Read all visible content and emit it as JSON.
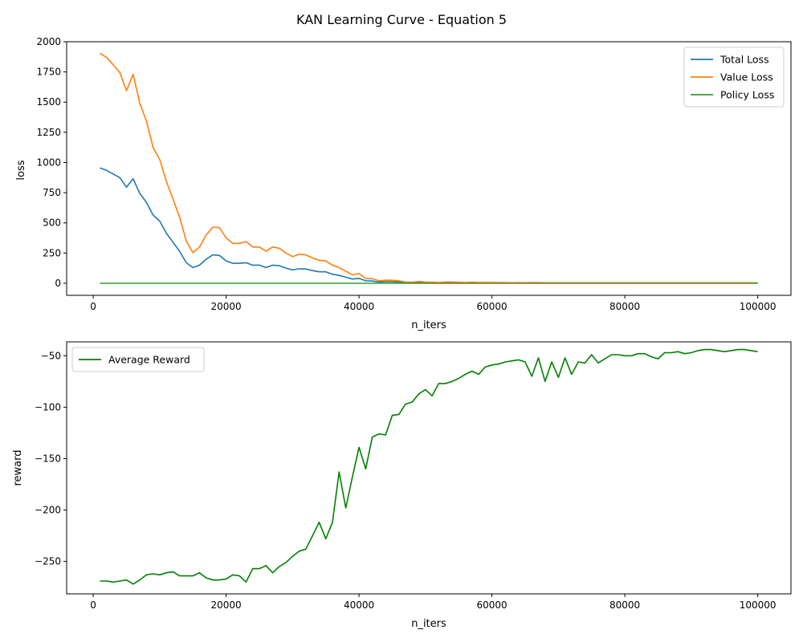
{
  "figure": {
    "suptitle": "KAN Learning Curve - Equation 5"
  },
  "chart_data": [
    {
      "type": "line",
      "xlabel": "n_iters",
      "ylabel": "loss",
      "xlim": [
        -4000,
        105000
      ],
      "ylim": [
        -100,
        2000
      ],
      "xticks": [
        0,
        20000,
        40000,
        60000,
        80000,
        100000
      ],
      "xtick_labels": [
        "0",
        "20000",
        "40000",
        "60000",
        "80000",
        "100000"
      ],
      "yticks": [
        0,
        250,
        500,
        750,
        1000,
        1250,
        1500,
        1750,
        2000
      ],
      "ytick_labels": [
        "0",
        "250",
        "500",
        "750",
        "1000",
        "1250",
        "1500",
        "1750",
        "2000"
      ],
      "grid": false,
      "legend_position": "top-right",
      "x": [
        1000,
        2000,
        3000,
        4000,
        5000,
        6000,
        7000,
        8000,
        9000,
        10000,
        11000,
        12000,
        13000,
        14000,
        15000,
        16000,
        17000,
        18000,
        19000,
        20000,
        21000,
        22000,
        23000,
        24000,
        25000,
        26000,
        27000,
        28000,
        29000,
        30000,
        31000,
        32000,
        33000,
        34000,
        35000,
        36000,
        37000,
        38000,
        39000,
        40000,
        41000,
        42000,
        43000,
        44000,
        45000,
        46000,
        47000,
        48000,
        49000,
        50000,
        51000,
        52000,
        53000,
        54000,
        55000,
        56000,
        57000,
        58000,
        59000,
        60000,
        61000,
        62000,
        63000,
        64000,
        65000,
        66000,
        67000,
        68000,
        69000,
        70000,
        71000,
        72000,
        73000,
        74000,
        75000,
        76000,
        77000,
        78000,
        79000,
        80000,
        81000,
        82000,
        83000,
        84000,
        85000,
        86000,
        87000,
        88000,
        89000,
        90000,
        91000,
        92000,
        93000,
        94000,
        95000,
        96000,
        97000,
        98000,
        99000,
        100000
      ],
      "series": [
        {
          "name": "Total Loss",
          "color": "#1f77b4",
          "values": [
            955,
            935,
            905,
            875,
            795,
            865,
            745,
            670,
            565,
            515,
            415,
            340,
            265,
            170,
            130,
            150,
            200,
            235,
            230,
            185,
            165,
            165,
            170,
            150,
            150,
            130,
            150,
            145,
            125,
            110,
            120,
            118,
            105,
            95,
            95,
            75,
            65,
            50,
            35,
            40,
            20,
            18,
            10,
            12,
            12,
            10,
            5,
            4,
            6,
            5,
            4,
            3,
            4,
            5,
            4,
            3,
            4,
            3,
            3,
            3,
            3,
            3,
            2,
            3,
            2,
            3,
            3,
            2,
            2,
            2,
            2,
            2,
            2,
            2,
            2,
            2,
            2,
            2,
            2,
            2,
            2,
            2,
            2,
            2,
            2,
            2,
            2,
            2,
            2,
            2,
            2,
            2,
            2,
            2,
            2,
            2,
            2,
            2,
            2,
            2
          ]
        },
        {
          "name": "Value Loss",
          "color": "#ff7f0e",
          "values": [
            1905,
            1870,
            1810,
            1745,
            1595,
            1730,
            1490,
            1345,
            1125,
            1025,
            845,
            700,
            545,
            350,
            255,
            300,
            400,
            465,
            460,
            375,
            330,
            330,
            345,
            300,
            300,
            265,
            300,
            290,
            250,
            220,
            240,
            235,
            210,
            190,
            185,
            150,
            130,
            100,
            70,
            80,
            40,
            38,
            20,
            25,
            25,
            20,
            10,
            8,
            15,
            10,
            8,
            6,
            10,
            10,
            8,
            6,
            8,
            6,
            6,
            6,
            6,
            5,
            4,
            5,
            4,
            6,
            5,
            4,
            4,
            4,
            4,
            4,
            4,
            4,
            4,
            4,
            4,
            4,
            4,
            4,
            4,
            4,
            4,
            4,
            4,
            4,
            4,
            4,
            4,
            4,
            4,
            4,
            4,
            4,
            4,
            4,
            4,
            4,
            4,
            4
          ]
        },
        {
          "name": "Policy Loss",
          "color": "#2ca02c",
          "values": [
            0,
            0,
            0,
            0,
            0,
            0,
            0,
            0,
            0,
            0,
            0,
            0,
            0,
            0,
            0,
            0,
            0,
            0,
            0,
            0,
            0,
            0,
            0,
            0,
            0,
            0,
            0,
            0,
            0,
            0,
            0,
            0,
            0,
            0,
            0,
            0,
            0,
            0,
            0,
            0,
            0,
            0,
            0,
            0,
            0,
            0,
            0,
            0,
            0,
            0,
            0,
            0,
            0,
            0,
            0,
            0,
            0,
            0,
            0,
            0,
            0,
            0,
            0,
            0,
            0,
            0,
            0,
            0,
            0,
            0,
            0,
            0,
            0,
            0,
            0,
            0,
            0,
            0,
            0,
            0,
            0,
            0,
            0,
            0,
            0,
            0,
            0,
            0,
            0,
            0,
            0,
            0,
            0,
            0,
            0,
            0,
            0,
            0,
            0,
            0
          ]
        }
      ]
    },
    {
      "type": "line",
      "xlabel": "n_iters",
      "ylabel": "reward",
      "xlim": [
        -4000,
        105000
      ],
      "ylim": [
        -281.5,
        -36.5
      ],
      "xticks": [
        0,
        20000,
        40000,
        60000,
        80000,
        100000
      ],
      "xtick_labels": [
        "0",
        "20000",
        "40000",
        "60000",
        "80000",
        "100000"
      ],
      "yticks": [
        -250,
        -200,
        -150,
        -100,
        -50
      ],
      "ytick_labels": [
        "−250",
        "−200",
        "−150",
        "−100",
        "−50"
      ],
      "grid": false,
      "legend_position": "top-left",
      "x": [
        1000,
        2000,
        3000,
        4000,
        5000,
        6000,
        7000,
        8000,
        9000,
        10000,
        11000,
        12000,
        13000,
        14000,
        15000,
        16000,
        17000,
        18000,
        19000,
        20000,
        21000,
        22000,
        23000,
        24000,
        25000,
        26000,
        27000,
        28000,
        29000,
        30000,
        31000,
        32000,
        33000,
        34000,
        35000,
        36000,
        37000,
        38000,
        39000,
        40000,
        41000,
        42000,
        43000,
        44000,
        45000,
        46000,
        47000,
        48000,
        49000,
        50000,
        51000,
        52000,
        53000,
        54000,
        55000,
        56000,
        57000,
        58000,
        59000,
        60000,
        61000,
        62000,
        63000,
        64000,
        65000,
        66000,
        67000,
        68000,
        69000,
        70000,
        71000,
        72000,
        73000,
        74000,
        75000,
        76000,
        77000,
        78000,
        79000,
        80000,
        81000,
        82000,
        83000,
        84000,
        85000,
        86000,
        87000,
        88000,
        89000,
        90000,
        91000,
        92000,
        93000,
        94000,
        95000,
        96000,
        97000,
        98000,
        99000,
        100000
      ],
      "series": [
        {
          "name": "Average Reward",
          "color": "#008000",
          "values": [
            -269,
            -269,
            -270,
            -269,
            -268,
            -272,
            -268,
            -263,
            -262,
            -263,
            -261,
            -260,
            -264,
            -264,
            -264,
            -261,
            -266,
            -268,
            -268,
            -267,
            -263,
            -264,
            -270,
            -257,
            -257,
            -254,
            -261,
            -255,
            -251,
            -245,
            -240,
            -238,
            -225,
            -212,
            -228,
            -212,
            -163,
            -198,
            -168,
            -139,
            -160,
            -129,
            -126,
            -127,
            -108,
            -107,
            -97,
            -95,
            -87,
            -83,
            -89,
            -77,
            -77,
            -75,
            -72,
            -68,
            -65,
            -68,
            -61,
            -59,
            -58,
            -56,
            -55,
            -54,
            -56,
            -70,
            -52,
            -75,
            -56,
            -71,
            -52,
            -68,
            -56,
            -57,
            -49,
            -57,
            -53,
            -49,
            -49,
            -50,
            -50,
            -48,
            -48,
            -51,
            -53,
            -47,
            -47,
            -46,
            -48,
            -47,
            -45,
            -44,
            -44,
            -45,
            -46,
            -45,
            -44,
            -44,
            -45,
            -46
          ]
        }
      ]
    }
  ]
}
